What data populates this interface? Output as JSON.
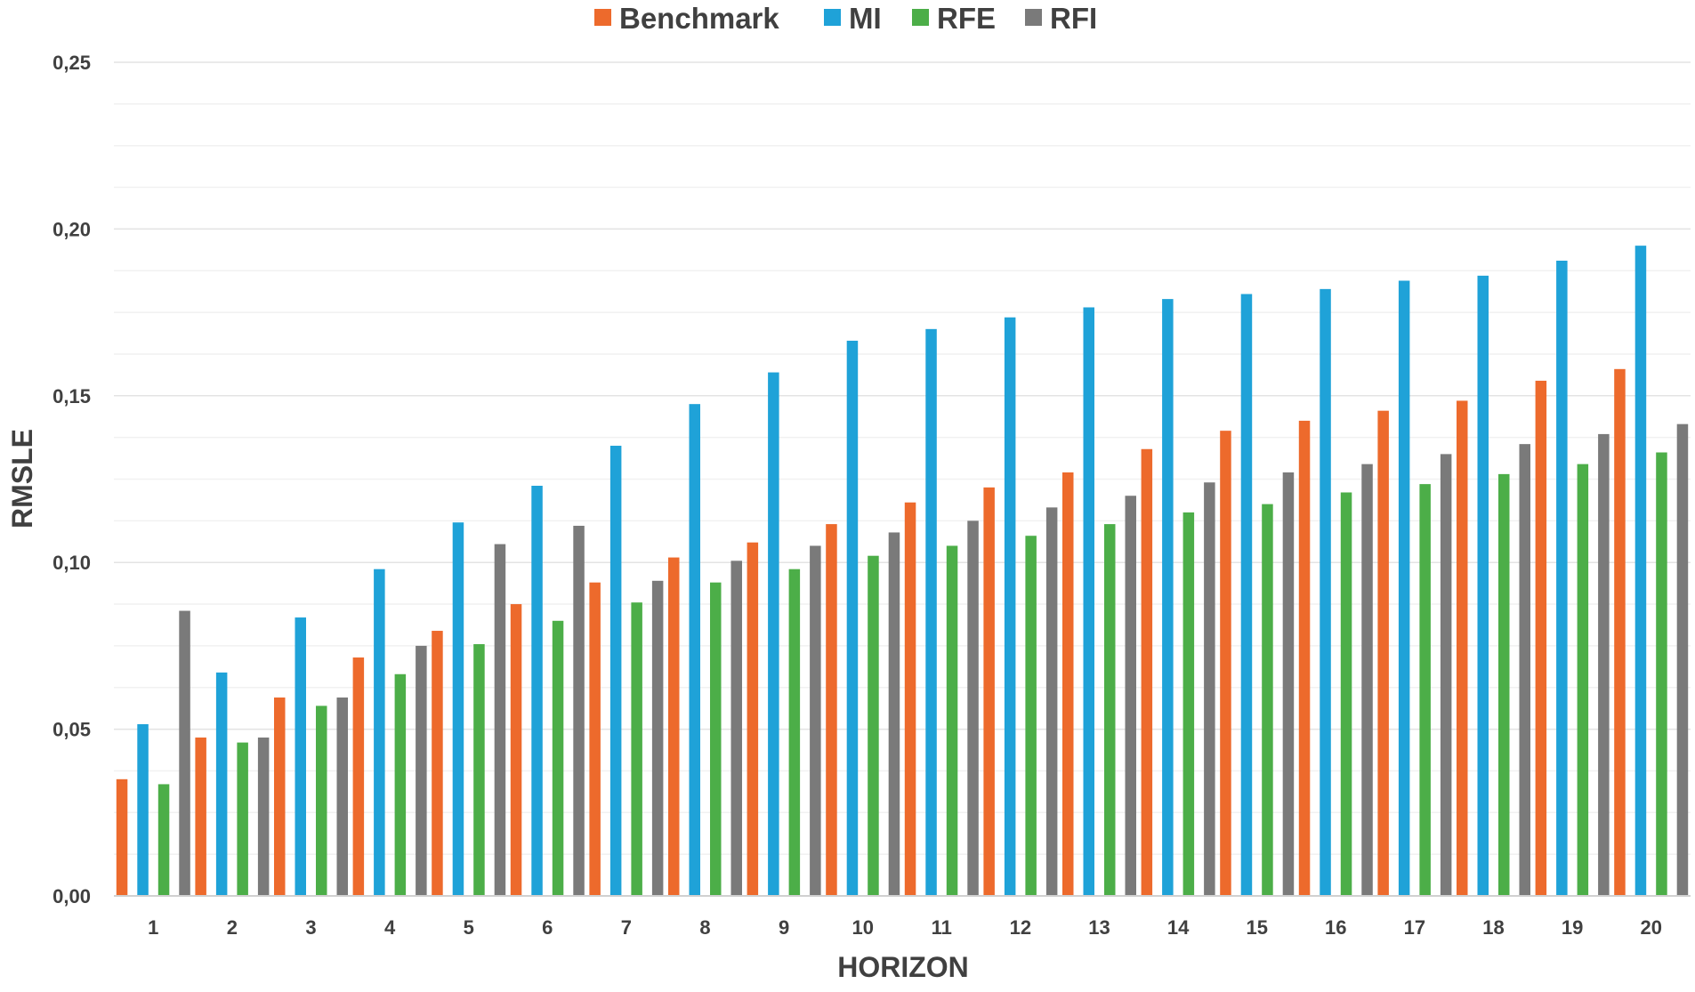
{
  "chart_data": {
    "type": "bar",
    "title": "",
    "xlabel": "HORIZON",
    "ylabel": "RMSLE",
    "ylim": [
      0,
      0.25
    ],
    "yticks": [
      {
        "value": 0.0,
        "label": "0,00"
      },
      {
        "value": 0.05,
        "label": "0,05"
      },
      {
        "value": 0.1,
        "label": "0,10"
      },
      {
        "value": 0.15,
        "label": "0,15"
      },
      {
        "value": 0.2,
        "label": "0,20"
      },
      {
        "value": 0.25,
        "label": "0,25"
      }
    ],
    "grid": true,
    "legend_position": "top-center",
    "categories": [
      "1",
      "2",
      "3",
      "4",
      "5",
      "6",
      "7",
      "8",
      "9",
      "10",
      "11",
      "12",
      "13",
      "14",
      "15",
      "16",
      "17",
      "18",
      "19",
      "20"
    ],
    "series": [
      {
        "name": "Benchmark",
        "color": "#ED6A2C",
        "values": [
          0.035,
          0.0475,
          0.0595,
          0.0715,
          0.0795,
          0.0875,
          0.094,
          0.1015,
          0.106,
          0.1115,
          0.118,
          0.1225,
          0.127,
          0.134,
          0.1395,
          0.1425,
          0.1455,
          0.1485,
          0.1545,
          0.158
        ]
      },
      {
        "name": "MI",
        "color": "#1FA2D8",
        "values": [
          0.0515,
          0.067,
          0.0835,
          0.098,
          0.112,
          0.123,
          0.135,
          0.1475,
          0.157,
          0.1665,
          0.17,
          0.1735,
          0.1765,
          0.179,
          0.1805,
          0.182,
          0.1845,
          0.186,
          0.1905,
          0.195
        ]
      },
      {
        "name": "RFE",
        "color": "#4CAE48",
        "values": [
          0.0335,
          0.046,
          0.057,
          0.0665,
          0.0755,
          0.0825,
          0.088,
          0.094,
          0.098,
          0.102,
          0.105,
          0.108,
          0.1115,
          0.115,
          0.1175,
          0.121,
          0.1235,
          0.1265,
          0.1295,
          0.133
        ]
      },
      {
        "name": "RFI",
        "color": "#7A7A7A",
        "values": [
          0.0855,
          0.0475,
          0.0595,
          0.075,
          0.1055,
          0.111,
          0.0945,
          0.1005,
          0.105,
          0.109,
          0.1125,
          0.1165,
          0.12,
          0.124,
          0.127,
          0.1295,
          0.1325,
          0.1355,
          0.1385,
          0.1415
        ]
      }
    ]
  }
}
